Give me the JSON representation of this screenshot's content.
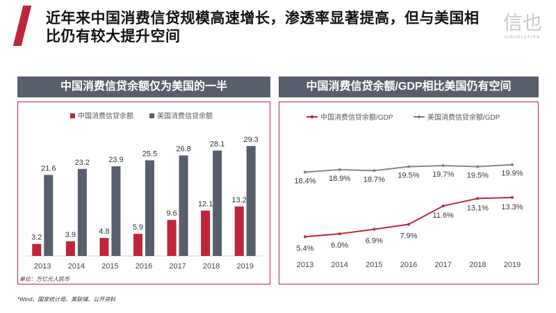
{
  "header": {
    "title": "近年来中国消费信贷规模高速增长，渗透率显著提高，但与美国相比仍有较大提升空间"
  },
  "logo": {
    "mark": "信也",
    "sub": "FINVOLUTION"
  },
  "colors": {
    "red": "#c0243b",
    "gray": "#585e6b",
    "line_gray": "#7f7f7f"
  },
  "left_panel": {
    "title": "中国消费信贷余额仅为美国的一半",
    "unit": "单位：万亿元人民币"
  },
  "right_panel": {
    "title": "中国消费信贷余额/GDP相比美国仍有空间"
  },
  "footer": {
    "source": "*Wind、国家统计局、美联储、公开资料"
  },
  "chart_data": [
    {
      "type": "bar",
      "title": "中国消费信贷余额仅为美国的一半",
      "unit": "万亿元人民币",
      "categories": [
        "2013",
        "2014",
        "2015",
        "2016",
        "2017",
        "2018",
        "2019"
      ],
      "series": [
        {
          "name": "中国消费信贷余额",
          "color": "#c0243b",
          "values": [
            3.2,
            3.9,
            4.8,
            5.9,
            9.6,
            12.1,
            13.2
          ],
          "labels": [
            "3.2",
            "3.9",
            "4.8",
            "5.9",
            "9.6",
            "12.1",
            "13.2"
          ]
        },
        {
          "name": "美国消费信贷余额",
          "color": "#585e6b",
          "values": [
            21.6,
            23.2,
            23.9,
            25.5,
            26.8,
            28.1,
            29.3
          ],
          "labels": [
            "21.6",
            "23.2",
            "23.9",
            "25.5",
            "26.8",
            "28.1",
            "29.3"
          ]
        }
      ],
      "ylim": [
        0,
        33
      ],
      "legend": "top-center",
      "grid": false
    },
    {
      "type": "line",
      "title": "中国消费信贷余额/GDP相比美国仍有空间",
      "categories": [
        "2013",
        "2014",
        "2015",
        "2016",
        "2017",
        "2018",
        "2019"
      ],
      "series": [
        {
          "name": "中国消费信贷余额/GDP",
          "color": "#c0243b",
          "values": [
            5.4,
            6.0,
            6.9,
            7.9,
            11.6,
            13.1,
            13.3
          ],
          "labels": [
            "5.4%",
            "6.0%",
            "6.9%",
            "7.9%",
            "11.6%",
            "13.1%",
            "13.3%"
          ]
        },
        {
          "name": "美国消费信贷余额/GDP",
          "color": "#7f7f7f",
          "values": [
            18.4,
            18.9,
            18.7,
            19.5,
            19.7,
            19.5,
            19.9
          ],
          "labels": [
            "18.4%",
            "18.9%",
            "18.7%",
            "19.5%",
            "19.7%",
            "19.5%",
            "19.9%"
          ]
        }
      ],
      "ylim": [
        0,
        24
      ],
      "legend": "top-center",
      "grid": false
    }
  ]
}
